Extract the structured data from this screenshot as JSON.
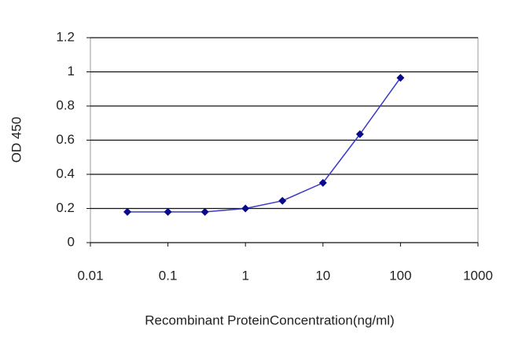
{
  "chart_data": {
    "type": "line",
    "xscale": "log",
    "grid": true,
    "xlabel": "Recombinant ProteinConcentration(ng/ml)",
    "ylabel": "OD 450",
    "x": [
      0.03,
      0.1,
      0.3,
      1,
      3,
      10,
      30,
      100
    ],
    "values": [
      0.18,
      0.18,
      0.18,
      0.2,
      0.245,
      0.35,
      0.635,
      0.965
    ],
    "color": "#3a3ac8",
    "marker_color": "#0a0a8c",
    "xlim": [
      0.01,
      1000
    ],
    "xticks": [
      0.01,
      0.1,
      1,
      10,
      100,
      1000
    ],
    "ylim": [
      0,
      1.2
    ],
    "yticks": [
      0,
      0.2,
      0.4,
      0.6,
      0.8,
      1,
      1.2
    ]
  }
}
